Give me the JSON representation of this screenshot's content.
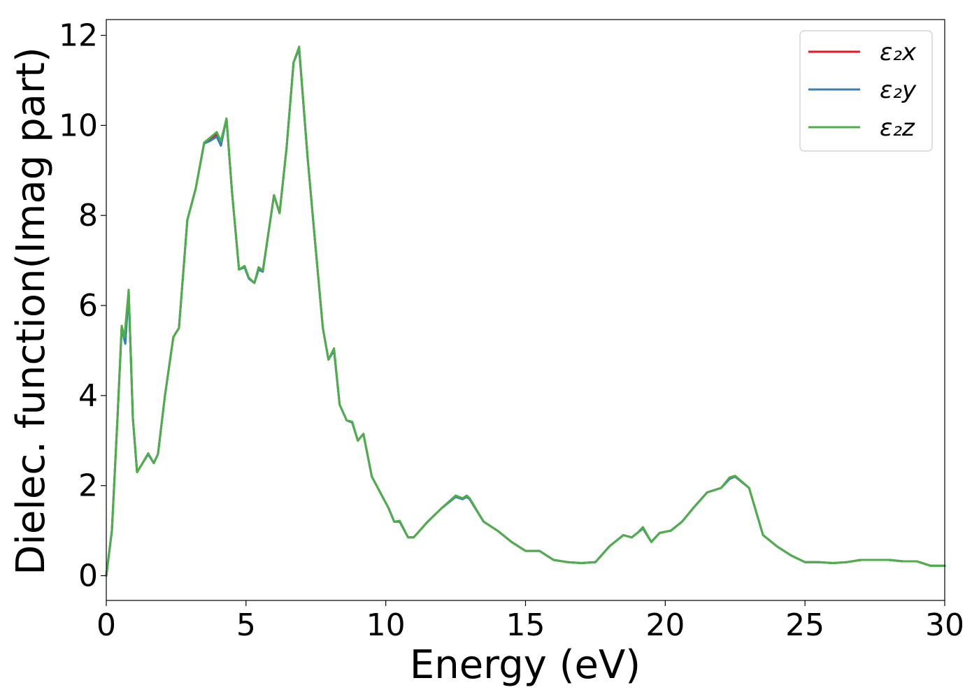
{
  "chart_data": {
    "type": "line",
    "title": "",
    "xlabel": "Energy (eV)",
    "ylabel": "Dielec. function(Imag part)",
    "xlim": [
      0,
      30
    ],
    "ylim": [
      -0.55,
      12.35
    ],
    "xticks": [
      0,
      5,
      10,
      15,
      20,
      25,
      30
    ],
    "yticks": [
      0,
      2,
      4,
      6,
      8,
      10,
      12
    ],
    "grid": false,
    "legend_position": "top-right",
    "series": [
      {
        "name": "ε₂x",
        "color": "#e41a1c",
        "x": [
          0,
          0.2,
          0.4,
          0.55,
          0.65,
          0.8,
          0.95,
          1.1,
          1.25,
          1.5,
          1.7,
          1.85,
          2.1,
          2.4,
          2.6,
          2.9,
          3.2,
          3.5,
          3.7,
          3.95,
          4.1,
          4.3,
          4.5,
          4.75,
          4.95,
          5.1,
          5.3,
          5.45,
          5.6,
          6.0,
          6.2,
          6.45,
          6.7,
          6.9,
          7.2,
          7.5,
          7.75,
          7.95,
          8.15,
          8.35,
          8.6,
          8.8,
          9.0,
          9.2,
          9.5,
          9.8,
          10.1,
          10.3,
          10.5,
          10.8,
          11.0,
          11.5,
          12.0,
          12.5,
          12.75,
          12.9,
          13.0,
          13.5,
          14.0,
          14.5,
          15.0,
          15.5,
          16.0,
          16.5,
          17.0,
          17.5,
          18.0,
          18.5,
          18.8,
          19.0,
          19.2,
          19.5,
          19.8,
          20.2,
          20.6,
          21.0,
          21.5,
          22.0,
          22.3,
          22.5,
          23.0,
          23.5,
          24.0,
          24.5,
          25.0,
          25.5,
          26.0,
          26.5,
          27.0,
          27.5,
          28.0,
          28.5,
          29.0,
          29.5,
          30.0
        ],
        "y": [
          0.0,
          1.0,
          3.5,
          5.5,
          5.25,
          6.3,
          3.5,
          2.3,
          2.45,
          2.7,
          2.5,
          2.7,
          4.0,
          5.3,
          5.5,
          7.9,
          8.6,
          9.6,
          9.7,
          9.8,
          9.6,
          10.15,
          8.5,
          6.8,
          6.85,
          6.6,
          6.5,
          6.8,
          6.75,
          8.45,
          8.05,
          9.5,
          11.4,
          11.7,
          9.3,
          7.2,
          5.5,
          4.8,
          5.0,
          3.8,
          3.45,
          3.4,
          3.0,
          3.15,
          2.2,
          1.85,
          1.5,
          1.2,
          1.2,
          0.85,
          0.85,
          1.2,
          1.5,
          1.75,
          1.7,
          1.75,
          1.7,
          1.2,
          1.0,
          0.75,
          0.55,
          0.55,
          0.35,
          0.3,
          0.28,
          0.3,
          0.65,
          0.9,
          0.85,
          0.95,
          1.05,
          0.75,
          0.95,
          1.0,
          1.2,
          1.5,
          1.85,
          1.95,
          2.15,
          2.2,
          1.95,
          0.9,
          0.65,
          0.45,
          0.3,
          0.3,
          0.28,
          0.3,
          0.35,
          0.35,
          0.35,
          0.32,
          0.32,
          0.22,
          0.22
        ]
      },
      {
        "name": "ε₂y",
        "color": "#377eb8",
        "x": [
          0,
          0.2,
          0.4,
          0.55,
          0.68,
          0.8,
          0.95,
          1.1,
          1.25,
          1.5,
          1.7,
          1.85,
          2.1,
          2.4,
          2.6,
          2.9,
          3.2,
          3.5,
          3.7,
          3.95,
          4.1,
          4.3,
          4.5,
          4.75,
          4.95,
          5.1,
          5.3,
          5.45,
          5.6,
          6.0,
          6.2,
          6.45,
          6.7,
          6.9,
          7.2,
          7.5,
          7.75,
          7.95,
          8.15,
          8.35,
          8.6,
          8.8,
          9.0,
          9.2,
          9.5,
          9.8,
          10.1,
          10.3,
          10.5,
          10.8,
          11.0,
          11.5,
          12.0,
          12.5,
          12.75,
          12.9,
          13.0,
          13.5,
          14.0,
          14.5,
          15.0,
          15.5,
          16.0,
          16.5,
          17.0,
          17.5,
          18.0,
          18.5,
          18.8,
          19.0,
          19.2,
          19.5,
          19.8,
          20.2,
          20.6,
          21.0,
          21.5,
          22.0,
          22.3,
          22.5,
          23.0,
          23.5,
          24.0,
          24.5,
          25.0,
          25.5,
          26.0,
          26.5,
          27.0,
          27.5,
          28.0,
          28.5,
          29.0,
          29.5,
          30.0
        ],
        "y": [
          0.0,
          1.0,
          3.5,
          5.5,
          5.15,
          6.3,
          3.5,
          2.3,
          2.45,
          2.7,
          2.5,
          2.7,
          4.0,
          5.3,
          5.5,
          7.9,
          8.6,
          9.6,
          9.65,
          9.75,
          9.55,
          10.15,
          8.5,
          6.8,
          6.85,
          6.6,
          6.5,
          6.8,
          6.75,
          8.45,
          8.05,
          9.5,
          11.4,
          11.7,
          9.3,
          7.2,
          5.5,
          4.8,
          5.0,
          3.8,
          3.45,
          3.4,
          3.0,
          3.15,
          2.2,
          1.85,
          1.5,
          1.2,
          1.2,
          0.85,
          0.85,
          1.2,
          1.5,
          1.75,
          1.7,
          1.75,
          1.7,
          1.2,
          1.0,
          0.75,
          0.55,
          0.55,
          0.35,
          0.3,
          0.28,
          0.3,
          0.65,
          0.9,
          0.85,
          0.95,
          1.05,
          0.75,
          0.95,
          1.0,
          1.2,
          1.5,
          1.85,
          1.95,
          2.15,
          2.2,
          1.95,
          0.9,
          0.65,
          0.45,
          0.3,
          0.3,
          0.28,
          0.3,
          0.35,
          0.35,
          0.35,
          0.32,
          0.32,
          0.22,
          0.22
        ]
      },
      {
        "name": "ε₂z",
        "color": "#4daf4a",
        "x": [
          0,
          0.2,
          0.4,
          0.55,
          0.65,
          0.8,
          0.95,
          1.1,
          1.25,
          1.5,
          1.7,
          1.85,
          2.1,
          2.4,
          2.6,
          2.9,
          3.2,
          3.5,
          3.7,
          3.95,
          4.1,
          4.3,
          4.5,
          4.75,
          4.95,
          5.1,
          5.3,
          5.45,
          5.6,
          6.0,
          6.2,
          6.45,
          6.7,
          6.9,
          7.2,
          7.5,
          7.75,
          7.95,
          8.15,
          8.35,
          8.6,
          8.8,
          9.0,
          9.2,
          9.5,
          9.8,
          10.1,
          10.3,
          10.5,
          10.8,
          11.0,
          11.5,
          12.0,
          12.5,
          12.75,
          12.9,
          13.0,
          13.5,
          14.0,
          14.5,
          15.0,
          15.5,
          16.0,
          16.5,
          17.0,
          17.5,
          18.0,
          18.5,
          18.8,
          19.0,
          19.2,
          19.5,
          19.8,
          20.2,
          20.6,
          21.0,
          21.5,
          22.0,
          22.3,
          22.5,
          23.0,
          23.5,
          24.0,
          24.5,
          25.0,
          25.5,
          26.0,
          26.5,
          27.0,
          27.5,
          28.0,
          28.5,
          29.0,
          29.5,
          30.0
        ],
        "y": [
          0.0,
          1.0,
          3.5,
          5.55,
          5.3,
          6.35,
          3.5,
          2.3,
          2.45,
          2.72,
          2.5,
          2.7,
          4.0,
          5.3,
          5.5,
          7.9,
          8.6,
          9.62,
          9.72,
          9.85,
          9.65,
          10.15,
          8.5,
          6.8,
          6.88,
          6.62,
          6.5,
          6.85,
          6.78,
          8.45,
          8.05,
          9.5,
          11.4,
          11.75,
          9.3,
          7.2,
          5.5,
          4.8,
          5.05,
          3.8,
          3.45,
          3.42,
          3.0,
          3.15,
          2.2,
          1.85,
          1.5,
          1.2,
          1.22,
          0.85,
          0.85,
          1.2,
          1.5,
          1.78,
          1.72,
          1.78,
          1.72,
          1.2,
          1.0,
          0.75,
          0.55,
          0.55,
          0.35,
          0.3,
          0.28,
          0.3,
          0.65,
          0.9,
          0.85,
          0.95,
          1.08,
          0.75,
          0.95,
          1.0,
          1.2,
          1.5,
          1.85,
          1.95,
          2.18,
          2.22,
          1.95,
          0.9,
          0.65,
          0.45,
          0.3,
          0.3,
          0.28,
          0.3,
          0.35,
          0.35,
          0.35,
          0.32,
          0.32,
          0.22,
          0.22
        ]
      }
    ]
  }
}
